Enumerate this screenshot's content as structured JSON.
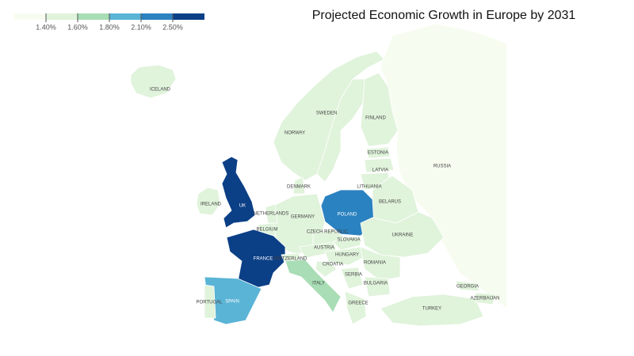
{
  "chart_data": {
    "type": "choropleth",
    "title": "Projected Economic Growth in Europe by 2031",
    "legend_colors": [
      "#f7fcf0",
      "#e0f3db",
      "#a8ddb5",
      "#5ab4d6",
      "#2b82c0",
      "#0b3f86"
    ],
    "legend_ticks": [
      {
        "value": 1.4,
        "label": "1.40%"
      },
      {
        "value": 1.6,
        "label": "1.60%"
      },
      {
        "value": 1.8,
        "label": "1.80%"
      },
      {
        "value": 2.1,
        "label": "2.10%"
      },
      {
        "value": 2.5,
        "label": "2.50%"
      }
    ],
    "countries": [
      {
        "name": "ICELAND",
        "value": 1.5
      },
      {
        "name": "IRELAND",
        "value": 1.5
      },
      {
        "name": "UK",
        "value": 2.6
      },
      {
        "name": "NORWAY",
        "value": 1.5
      },
      {
        "name": "SWEDEN",
        "value": 1.5
      },
      {
        "name": "FINLAND",
        "value": 1.5
      },
      {
        "name": "RUSSIA",
        "value": 1.3
      },
      {
        "name": "ESTONIA",
        "value": 1.5
      },
      {
        "name": "LATVIA",
        "value": 1.5
      },
      {
        "name": "LITHUANIA",
        "value": 1.5
      },
      {
        "name": "BELARUS",
        "value": 1.5
      },
      {
        "name": "POLAND",
        "value": 2.3
      },
      {
        "name": "GERMANY",
        "value": 1.5
      },
      {
        "name": "DENMARK",
        "value": 1.5
      },
      {
        "name": "NETHERLANDS",
        "value": 1.5
      },
      {
        "name": "BELGIUM",
        "value": 1.5
      },
      {
        "name": "FRANCE",
        "value": 2.6
      },
      {
        "name": "SWITZERLAND",
        "value": 1.5
      },
      {
        "name": "AUSTRIA",
        "value": 1.5
      },
      {
        "name": "CZECH REPUBLIC",
        "value": 1.5
      },
      {
        "name": "SLOVAKIA",
        "value": 1.5
      },
      {
        "name": "HUNGARY",
        "value": 1.5
      },
      {
        "name": "UKRAINE",
        "value": 1.5
      },
      {
        "name": "ROMANIA",
        "value": 1.5
      },
      {
        "name": "CROATIA",
        "value": 1.5
      },
      {
        "name": "SERBIA",
        "value": 1.5
      },
      {
        "name": "BULGARIA",
        "value": 1.5
      },
      {
        "name": "GREECE",
        "value": 1.5
      },
      {
        "name": "ITALY",
        "value": 1.7
      },
      {
        "name": "SPAIN",
        "value": 2.0
      },
      {
        "name": "PORTUGAL",
        "value": 1.5
      },
      {
        "name": "TURKEY",
        "value": 1.5
      },
      {
        "name": "GEORGIA",
        "value": 1.5
      },
      {
        "name": "AZERBAIJAN",
        "value": 1.5
      }
    ]
  }
}
